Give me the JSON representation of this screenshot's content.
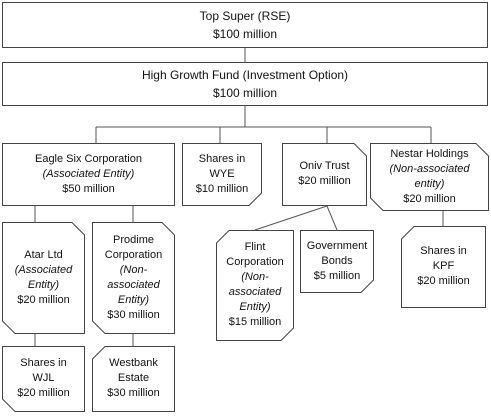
{
  "top": {
    "lines": [
      "Top Super  (RSE)",
      "$100 million"
    ]
  },
  "fund": {
    "lines": [
      "High Growth Fund  (Investment Option)",
      "$100 million"
    ]
  },
  "level2": {
    "eagle": {
      "lines": [
        "Eagle Six Corporation",
        "(Associated Entity)",
        "$50 million"
      ]
    },
    "wye": {
      "lines": [
        "Shares in",
        "WYE",
        "$10 million"
      ]
    },
    "oniv": {
      "lines": [
        "Oniv Trust",
        "$20 million"
      ]
    },
    "nestar": {
      "lines": [
        "Nestar Holdings",
        "(Non-associated",
        "entity)",
        "$20 million"
      ]
    }
  },
  "level3": {
    "atar": {
      "lines": [
        "Atar Ltd",
        "(Associated",
        "Entity)",
        "$20 million"
      ]
    },
    "prodime": {
      "lines": [
        "Prodime",
        "Corporation",
        "(Non-",
        "associated",
        "Entity)",
        "$30 million"
      ]
    },
    "flint": {
      "lines": [
        "Flint",
        "Corporation",
        "(Non-",
        "associated",
        "Entity)",
        "$15 million"
      ]
    },
    "govbonds": {
      "lines": [
        "Government",
        "Bonds",
        "$5 million"
      ]
    },
    "kpf": {
      "lines": [
        "Shares in",
        "KPF",
        "$20 million"
      ]
    }
  },
  "level4": {
    "wjl": {
      "lines": [
        "Shares in",
        "WJL",
        "$20 million"
      ]
    },
    "westbank": {
      "lines": [
        "Westbank",
        "Estate",
        "$30 million"
      ]
    }
  }
}
